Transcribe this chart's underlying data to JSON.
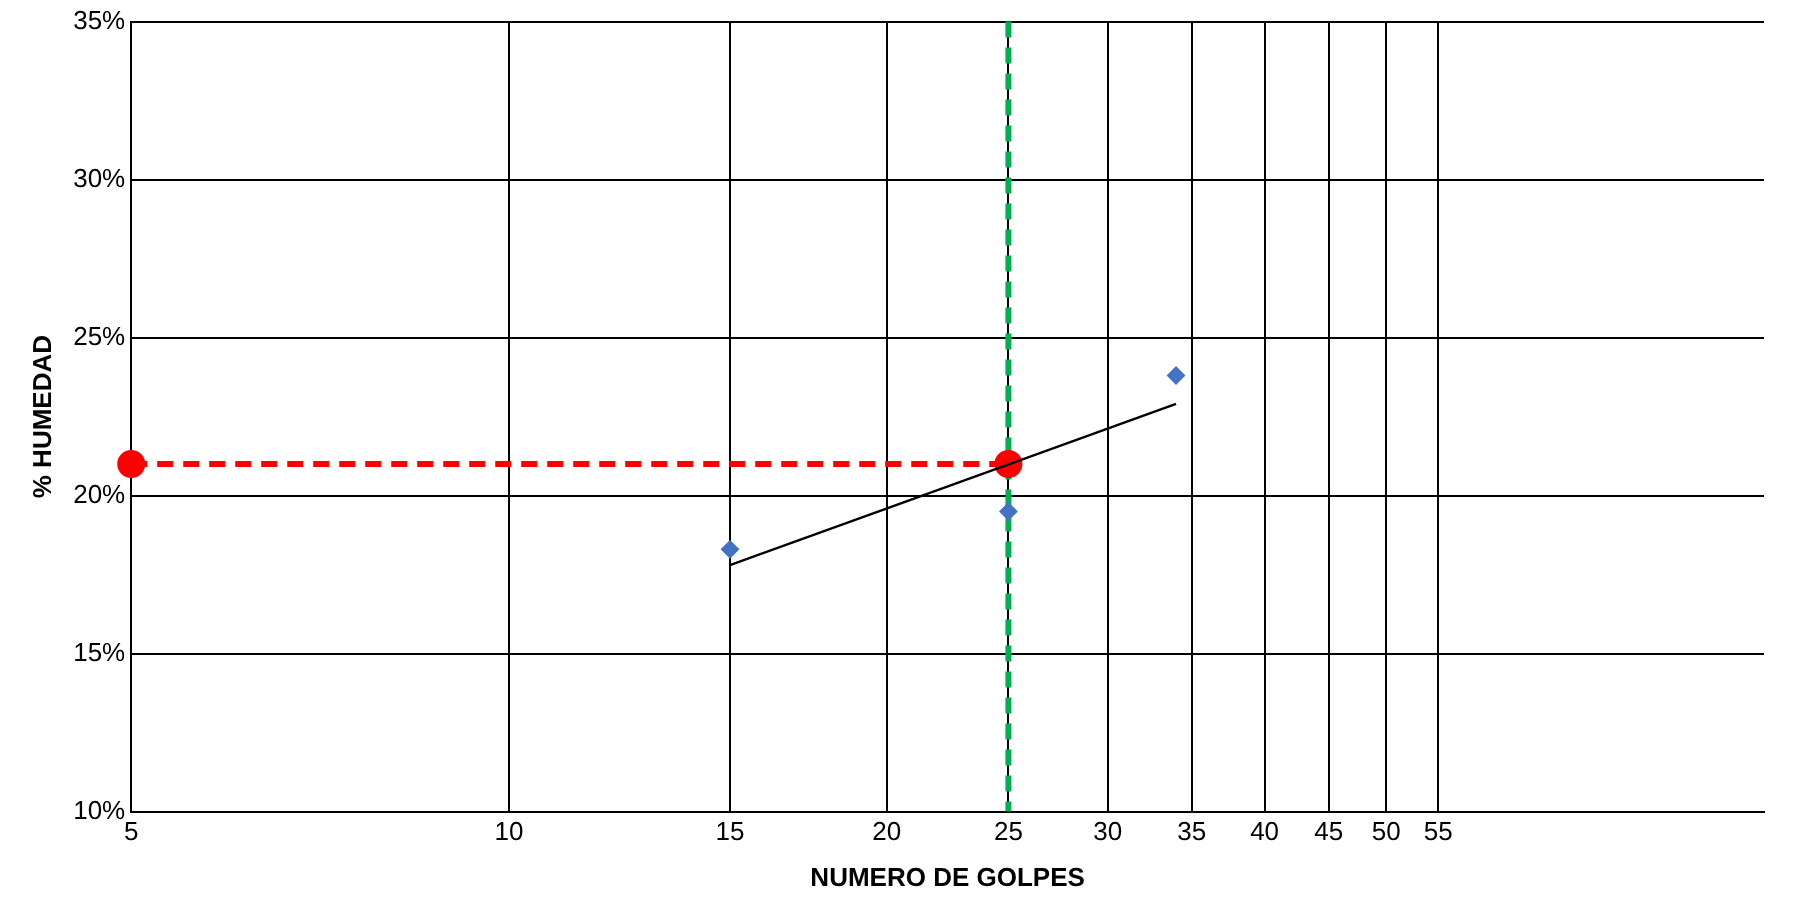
{
  "chart_data": {
    "type": "scatter",
    "xlabel": "NUMERO DE GOLPES",
    "ylabel": "% HUMEDAD",
    "log": "x",
    "xlim": [
      5,
      100
    ],
    "xticks": [
      5,
      10,
      15,
      20,
      25,
      30,
      35,
      40,
      45,
      50,
      55
    ],
    "ylim": [
      10,
      35
    ],
    "yticks": [
      {
        "value": 10,
        "label": "10%"
      },
      {
        "value": 15,
        "label": "15%"
      },
      {
        "value": 20,
        "label": "20%"
      },
      {
        "value": 25,
        "label": "25%"
      },
      {
        "value": 30,
        "label": "30%"
      },
      {
        "value": 35,
        "label": "35%"
      }
    ],
    "grid": true,
    "series": [
      {
        "color": "#4472c4",
        "marker": "diamond",
        "x": [
          15,
          25,
          34
        ],
        "values": [
          18.3,
          19.5,
          23.8
        ]
      },
      {
        "type": "line",
        "color": "#000000",
        "marker": "none",
        "x": [
          15,
          34
        ],
        "values": [
          17.8,
          22.9
        ]
      },
      {
        "type": "line",
        "color": "#ff0000",
        "marker": "circle",
        "line_style": "dashed",
        "x": [
          5,
          25
        ],
        "values": [
          21,
          21
        ]
      }
    ],
    "ref_lines": [
      {
        "axis": "x",
        "value": 25,
        "color": "#00b050",
        "line_style": "dashed"
      }
    ]
  }
}
